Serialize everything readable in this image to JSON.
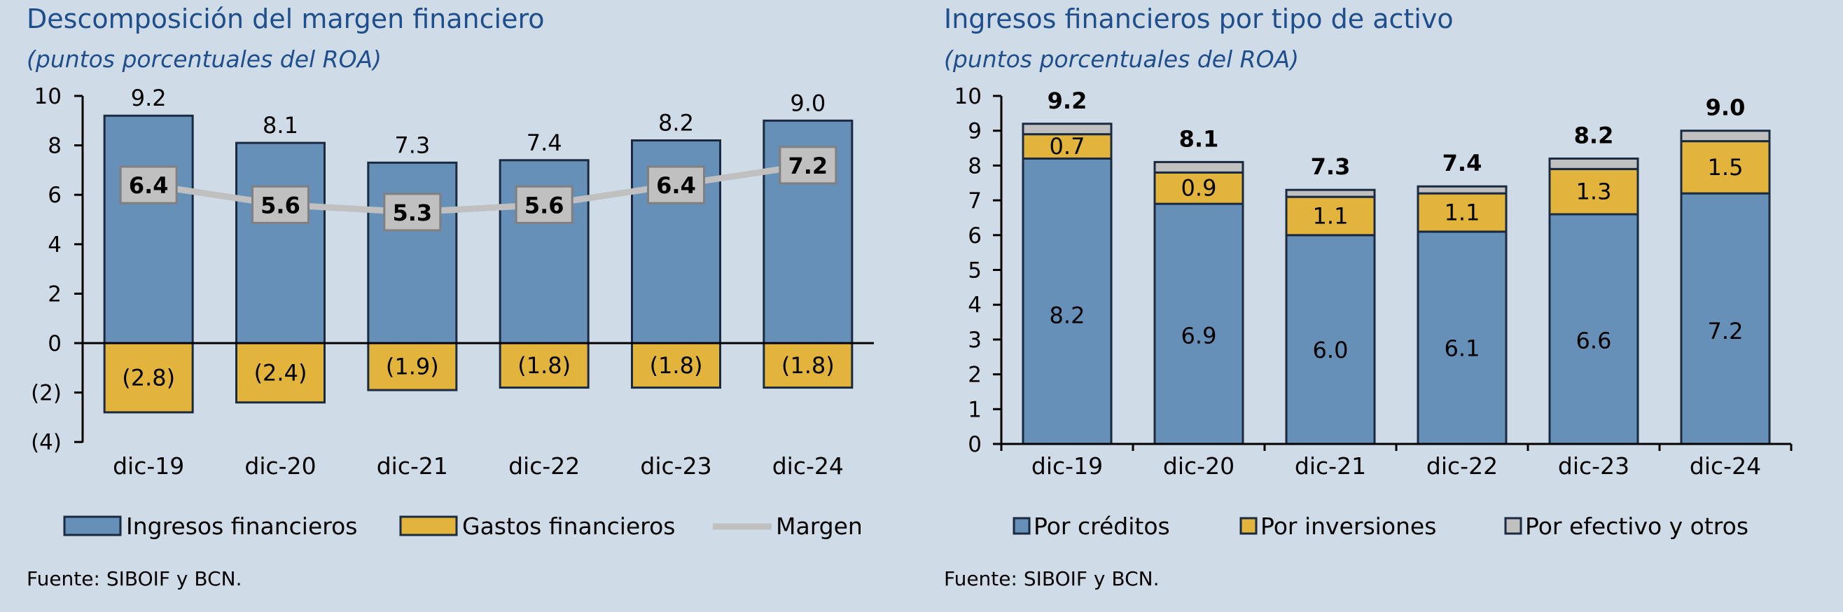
{
  "colors": {
    "ingresos": "#6690b8",
    "gastos": "#e3b43c",
    "margen": "#c0c0c0",
    "efectivo": "#c0c0c0",
    "border": "#1a2a40",
    "title": "#1f4e8c"
  },
  "left": {
    "title": "Descomposición del margen financiero",
    "subtitle": "(puntos porcentuales del ROA)",
    "source": "Fuente: SIBOIF y BCN.",
    "legend": [
      "Ingresos financieros",
      "Gastos financieros",
      "Margen"
    ]
  },
  "right": {
    "title": "Ingresos financieros por tipo de activo",
    "subtitle": "(puntos porcentuales del ROA)",
    "source": "Fuente: SIBOIF y BCN.",
    "legend": [
      "Por créditos",
      "Por inversiones",
      "Por efectivo y otros"
    ]
  },
  "chart_data": [
    {
      "type": "bar",
      "title": "Descomposición del margen financiero",
      "subtitle": "(puntos porcentuales del ROA)",
      "categories": [
        "dic-19",
        "dic-20",
        "dic-21",
        "dic-22",
        "dic-23",
        "dic-24"
      ],
      "ylim": [
        -4,
        10
      ],
      "yticks": [
        10,
        8,
        6,
        4,
        2,
        0,
        -2,
        -4
      ],
      "ytick_labels": [
        "10",
        "8",
        "6",
        "4",
        "2",
        "0",
        "(2)",
        "(4)"
      ],
      "series": [
        {
          "name": "Ingresos financieros",
          "type": "bar",
          "values": [
            9.2,
            8.1,
            7.3,
            7.4,
            8.2,
            9.0
          ],
          "labels": [
            "9.2",
            "8.1",
            "7.3",
            "7.4",
            "8.2",
            "9.0"
          ]
        },
        {
          "name": "Gastos financieros",
          "type": "bar",
          "values": [
            -2.8,
            -2.4,
            -1.9,
            -1.8,
            -1.8,
            -1.8
          ],
          "labels": [
            "(2.8)",
            "(2.4)",
            "(1.9)",
            "(1.8)",
            "(1.8)",
            "(1.8)"
          ]
        },
        {
          "name": "Margen",
          "type": "line",
          "values": [
            6.4,
            5.6,
            5.3,
            5.6,
            6.4,
            7.2
          ],
          "labels": [
            "6.4",
            "5.6",
            "5.3",
            "5.6",
            "6.4",
            "7.2"
          ]
        }
      ],
      "legend_position": "bottom"
    },
    {
      "type": "bar",
      "stacked": true,
      "title": "Ingresos financieros por tipo de activo",
      "subtitle": "(puntos porcentuales del ROA)",
      "categories": [
        "dic-19",
        "dic-20",
        "dic-21",
        "dic-22",
        "dic-23",
        "dic-24"
      ],
      "ylim": [
        0,
        10
      ],
      "yticks": [
        10,
        9,
        8,
        7,
        6,
        5,
        4,
        3,
        2,
        1,
        0
      ],
      "ytick_labels": [
        "10",
        "9",
        "8",
        "7",
        "6",
        "5",
        "4",
        "3",
        "2",
        "1",
        "0"
      ],
      "series": [
        {
          "name": "Por créditos",
          "values": [
            8.2,
            6.9,
            6.0,
            6.1,
            6.6,
            7.2
          ],
          "labels": [
            "8.2",
            "6.9",
            "6.0",
            "6.1",
            "6.6",
            "7.2"
          ]
        },
        {
          "name": "Por inversiones",
          "values": [
            0.7,
            0.9,
            1.1,
            1.1,
            1.3,
            1.5
          ],
          "labels": [
            "0.7",
            "0.9",
            "1.1",
            "1.1",
            "1.3",
            "1.5"
          ]
        },
        {
          "name": "Por efectivo y otros",
          "values": [
            0.3,
            0.3,
            0.2,
            0.2,
            0.3,
            0.3
          ]
        }
      ],
      "totals": [
        "9.2",
        "8.1",
        "7.3",
        "7.4",
        "8.2",
        "9.0"
      ],
      "legend_position": "bottom"
    }
  ]
}
